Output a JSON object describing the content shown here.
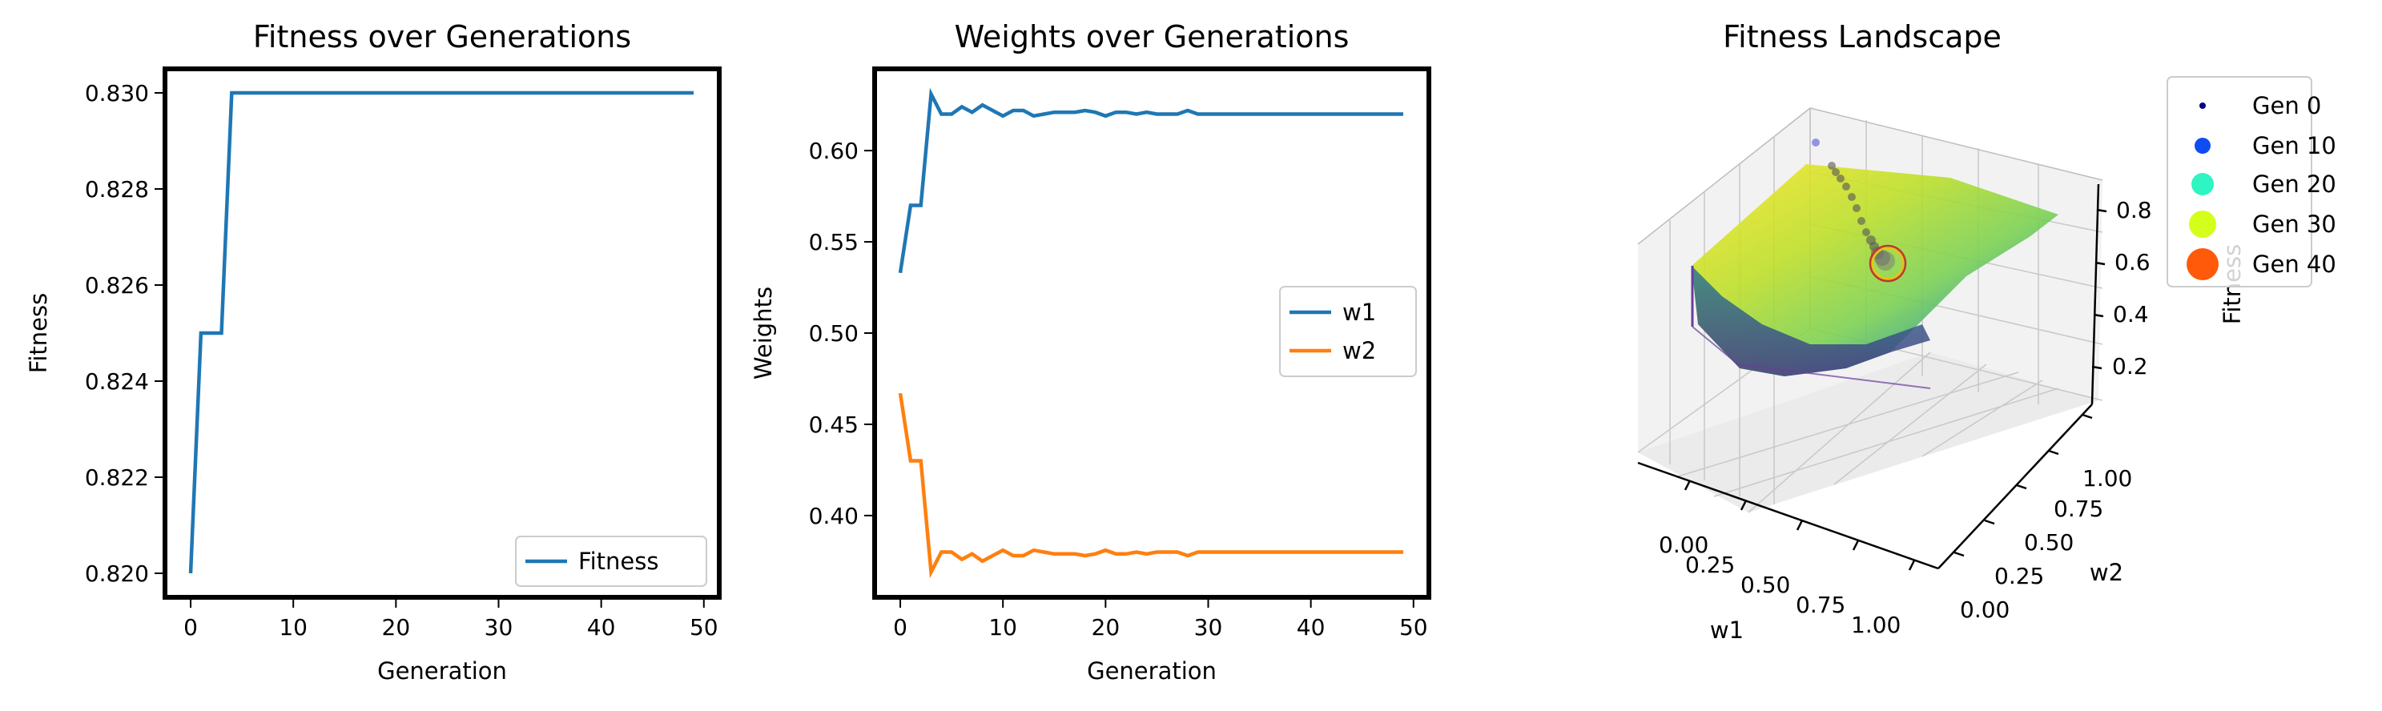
{
  "chart_data": [
    {
      "type": "line",
      "title": "Fitness over Generations",
      "xlabel": "Generation",
      "ylabel": "Fitness",
      "xlim": [
        -2.5,
        51.5
      ],
      "ylim": [
        0.8195,
        0.8305
      ],
      "xticks": [
        "0",
        "10",
        "20",
        "30",
        "40",
        "50"
      ],
      "yticks": [
        "0.820",
        "0.822",
        "0.824",
        "0.826",
        "0.828",
        "0.830"
      ],
      "legend_position": "lower-right",
      "series": [
        {
          "name": "Fitness",
          "color": "#1f77b4",
          "x": [
            0,
            1,
            2,
            3,
            4,
            5,
            6,
            7,
            8,
            9,
            10,
            11,
            12,
            13,
            14,
            15,
            16,
            17,
            18,
            19,
            20,
            21,
            22,
            23,
            24,
            25,
            26,
            27,
            28,
            29,
            30,
            31,
            32,
            33,
            34,
            35,
            36,
            37,
            38,
            39,
            40,
            41,
            42,
            43,
            44,
            45,
            46,
            47,
            48,
            49
          ],
          "values": [
            0.82,
            0.825,
            0.825,
            0.825,
            0.83,
            0.83,
            0.83,
            0.83,
            0.83,
            0.83,
            0.83,
            0.83,
            0.83,
            0.83,
            0.83,
            0.83,
            0.83,
            0.83,
            0.83,
            0.83,
            0.83,
            0.83,
            0.83,
            0.83,
            0.83,
            0.83,
            0.83,
            0.83,
            0.83,
            0.83,
            0.83,
            0.83,
            0.83,
            0.83,
            0.83,
            0.83,
            0.83,
            0.83,
            0.83,
            0.83,
            0.83,
            0.83,
            0.83,
            0.83,
            0.83,
            0.83,
            0.83,
            0.83,
            0.83,
            0.83
          ]
        }
      ]
    },
    {
      "type": "line",
      "title": "Weights over Generations",
      "xlabel": "Generation",
      "ylabel": "Weights",
      "xlim": [
        -2.5,
        51.5
      ],
      "ylim": [
        0.3552,
        0.6448
      ],
      "xticks": [
        "0",
        "10",
        "20",
        "30",
        "40",
        "50"
      ],
      "yticks": [
        "0.40",
        "0.45",
        "0.50",
        "0.55",
        "0.60"
      ],
      "legend_position": "center-right",
      "series": [
        {
          "name": "w1",
          "color": "#1f77b4",
          "x": [
            0,
            1,
            2,
            3,
            4,
            5,
            6,
            7,
            8,
            9,
            10,
            11,
            12,
            13,
            14,
            15,
            16,
            17,
            18,
            19,
            20,
            21,
            22,
            23,
            24,
            25,
            26,
            27,
            28,
            29,
            30,
            31,
            32,
            33,
            34,
            35,
            36,
            37,
            38,
            39,
            40,
            41,
            42,
            43,
            44,
            45,
            46,
            47,
            48,
            49
          ],
          "values": [
            0.533,
            0.57,
            0.57,
            0.631,
            0.62,
            0.62,
            0.624,
            0.621,
            0.625,
            0.622,
            0.619,
            0.622,
            0.622,
            0.619,
            0.62,
            0.621,
            0.621,
            0.621,
            0.622,
            0.621,
            0.619,
            0.621,
            0.621,
            0.62,
            0.621,
            0.62,
            0.62,
            0.62,
            0.622,
            0.62,
            0.62,
            0.62,
            0.62,
            0.62,
            0.62,
            0.62,
            0.62,
            0.62,
            0.62,
            0.62,
            0.62,
            0.62,
            0.62,
            0.62,
            0.62,
            0.62,
            0.62,
            0.62,
            0.62,
            0.62
          ]
        },
        {
          "name": "w2",
          "color": "#ff7f0e",
          "x": [
            0,
            1,
            2,
            3,
            4,
            5,
            6,
            7,
            8,
            9,
            10,
            11,
            12,
            13,
            14,
            15,
            16,
            17,
            18,
            19,
            20,
            21,
            22,
            23,
            24,
            25,
            26,
            27,
            28,
            29,
            30,
            31,
            32,
            33,
            34,
            35,
            36,
            37,
            38,
            39,
            40,
            41,
            42,
            43,
            44,
            45,
            46,
            47,
            48,
            49
          ],
          "values": [
            0.467,
            0.43,
            0.43,
            0.369,
            0.38,
            0.38,
            0.376,
            0.379,
            0.375,
            0.378,
            0.381,
            0.378,
            0.378,
            0.381,
            0.38,
            0.379,
            0.379,
            0.379,
            0.378,
            0.379,
            0.381,
            0.379,
            0.379,
            0.38,
            0.379,
            0.38,
            0.38,
            0.38,
            0.378,
            0.38,
            0.38,
            0.38,
            0.38,
            0.38,
            0.38,
            0.38,
            0.38,
            0.38,
            0.38,
            0.38,
            0.38,
            0.38,
            0.38,
            0.38,
            0.38,
            0.38,
            0.38,
            0.38,
            0.38,
            0.38
          ]
        }
      ]
    },
    {
      "type": "scatter3d",
      "title": "Fitness Landscape",
      "xlabel": "w1",
      "ylabel": "w2",
      "zlabel": "Fitness",
      "xticks": [
        "0.00",
        "0.25",
        "0.50",
        "0.75",
        "1.00"
      ],
      "yticks": [
        "0.00",
        "0.25",
        "0.50",
        "0.75",
        "1.00"
      ],
      "zticks": [
        "0.2",
        "0.4",
        "0.6",
        "0.8"
      ],
      "surface_colormap": "viridis",
      "legend_position": "upper-right-outside",
      "series": [
        {
          "name": "Gen 0",
          "color": "#00008b"
        },
        {
          "name": "Gen 10",
          "color": "#0f4df2"
        },
        {
          "name": "Gen 20",
          "color": "#2ef5c2"
        },
        {
          "name": "Gen 30",
          "color": "#d4ff1a"
        },
        {
          "name": "Gen 40",
          "color": "#ff5a0a"
        }
      ]
    }
  ]
}
